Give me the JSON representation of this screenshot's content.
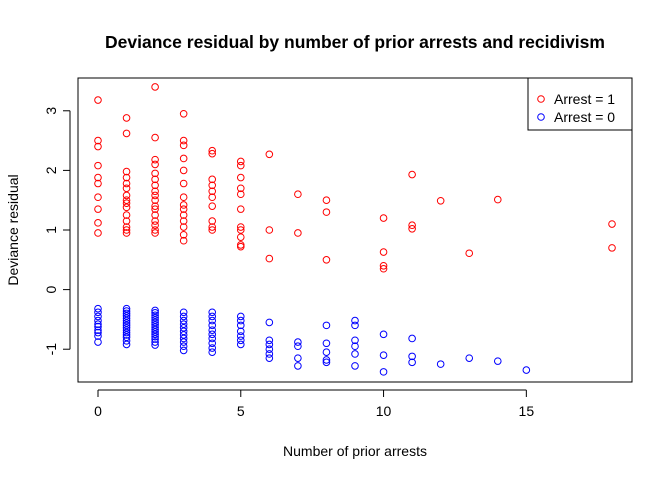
{
  "chart_data": {
    "type": "scatter",
    "title": "Deviance residual by number of prior arrests and recidivism",
    "xlabel": "Number of prior arrests",
    "ylabel": "Deviance residual",
    "xlim": [
      -0.7,
      18.7
    ],
    "ylim": [
      -1.55,
      3.55
    ],
    "xticks": [
      0,
      5,
      10,
      15
    ],
    "yticks": [
      -1,
      0,
      1,
      2,
      3
    ],
    "grid": false,
    "legend_position": "top-right",
    "series": [
      {
        "name": "Arrest = 1",
        "color": "#ff0000",
        "points": [
          [
            0,
            3.18
          ],
          [
            0,
            2.5
          ],
          [
            0,
            2.4
          ],
          [
            0,
            2.08
          ],
          [
            0,
            1.88
          ],
          [
            0,
            1.78
          ],
          [
            0,
            1.55
          ],
          [
            0,
            1.35
          ],
          [
            0,
            1.12
          ],
          [
            0,
            0.95
          ],
          [
            1,
            2.88
          ],
          [
            1,
            2.62
          ],
          [
            1,
            1.98
          ],
          [
            1,
            1.88
          ],
          [
            1,
            1.78
          ],
          [
            1,
            1.7
          ],
          [
            1,
            1.58
          ],
          [
            1,
            1.5
          ],
          [
            1,
            1.45
          ],
          [
            1,
            1.38
          ],
          [
            1,
            1.25
          ],
          [
            1,
            1.15
          ],
          [
            1,
            1.05
          ],
          [
            1,
            1.0
          ],
          [
            1,
            0.95
          ],
          [
            2,
            3.4
          ],
          [
            2,
            2.55
          ],
          [
            2,
            2.18
          ],
          [
            2,
            2.1
          ],
          [
            2,
            1.95
          ],
          [
            2,
            1.85
          ],
          [
            2,
            1.75
          ],
          [
            2,
            1.65
          ],
          [
            2,
            1.58
          ],
          [
            2,
            1.5
          ],
          [
            2,
            1.4
          ],
          [
            2,
            1.35
          ],
          [
            2,
            1.25
          ],
          [
            2,
            1.15
          ],
          [
            2,
            1.08
          ],
          [
            2,
            1.0
          ],
          [
            2,
            0.95
          ],
          [
            3,
            2.95
          ],
          [
            3,
            2.5
          ],
          [
            3,
            2.42
          ],
          [
            3,
            2.2
          ],
          [
            3,
            2.0
          ],
          [
            3,
            1.78
          ],
          [
            3,
            1.55
          ],
          [
            3,
            1.42
          ],
          [
            3,
            1.35
          ],
          [
            3,
            1.25
          ],
          [
            3,
            1.15
          ],
          [
            3,
            1.05
          ],
          [
            3,
            0.92
          ],
          [
            3,
            0.82
          ],
          [
            4,
            2.33
          ],
          [
            4,
            2.28
          ],
          [
            4,
            1.85
          ],
          [
            4,
            1.75
          ],
          [
            4,
            1.65
          ],
          [
            4,
            1.55
          ],
          [
            4,
            1.4
          ],
          [
            4,
            1.15
          ],
          [
            4,
            1.05
          ],
          [
            4,
            1.0
          ],
          [
            5,
            2.15
          ],
          [
            5,
            2.08
          ],
          [
            5,
            1.88
          ],
          [
            5,
            1.7
          ],
          [
            5,
            1.6
          ],
          [
            5,
            1.35
          ],
          [
            5,
            1.05
          ],
          [
            5,
            1.0
          ],
          [
            5,
            0.88
          ],
          [
            5,
            0.75
          ],
          [
            5,
            0.72
          ],
          [
            6,
            2.27
          ],
          [
            6,
            1.0
          ],
          [
            6,
            0.52
          ],
          [
            7,
            1.6
          ],
          [
            7,
            0.95
          ],
          [
            8,
            1.5
          ],
          [
            8,
            1.3
          ],
          [
            8,
            0.5
          ],
          [
            10,
            1.2
          ],
          [
            10,
            0.63
          ],
          [
            10,
            0.4
          ],
          [
            10,
            0.35
          ],
          [
            11,
            1.93
          ],
          [
            11,
            1.08
          ],
          [
            11,
            1.02
          ],
          [
            12,
            1.49
          ],
          [
            13,
            0.61
          ],
          [
            14,
            1.51
          ],
          [
            18,
            1.1
          ],
          [
            18,
            0.7
          ]
        ]
      },
      {
        "name": "Arrest = 0",
        "color": "#0000ff",
        "points": [
          [
            0,
            -0.32
          ],
          [
            0,
            -0.38
          ],
          [
            0,
            -0.45
          ],
          [
            0,
            -0.52
          ],
          [
            0,
            -0.58
          ],
          [
            0,
            -0.62
          ],
          [
            0,
            -0.68
          ],
          [
            0,
            -0.72
          ],
          [
            0,
            -0.78
          ],
          [
            0,
            -0.88
          ],
          [
            1,
            -0.32
          ],
          [
            1,
            -0.36
          ],
          [
            1,
            -0.4
          ],
          [
            1,
            -0.44
          ],
          [
            1,
            -0.48
          ],
          [
            1,
            -0.52
          ],
          [
            1,
            -0.56
          ],
          [
            1,
            -0.6
          ],
          [
            1,
            -0.64
          ],
          [
            1,
            -0.68
          ],
          [
            1,
            -0.72
          ],
          [
            1,
            -0.76
          ],
          [
            1,
            -0.8
          ],
          [
            1,
            -0.86
          ],
          [
            1,
            -0.92
          ],
          [
            2,
            -0.35
          ],
          [
            2,
            -0.39
          ],
          [
            2,
            -0.43
          ],
          [
            2,
            -0.47
          ],
          [
            2,
            -0.51
          ],
          [
            2,
            -0.55
          ],
          [
            2,
            -0.59
          ],
          [
            2,
            -0.63
          ],
          [
            2,
            -0.67
          ],
          [
            2,
            -0.71
          ],
          [
            2,
            -0.75
          ],
          [
            2,
            -0.79
          ],
          [
            2,
            -0.83
          ],
          [
            2,
            -0.88
          ],
          [
            2,
            -0.93
          ],
          [
            3,
            -0.38
          ],
          [
            3,
            -0.45
          ],
          [
            3,
            -0.52
          ],
          [
            3,
            -0.58
          ],
          [
            3,
            -0.64
          ],
          [
            3,
            -0.7
          ],
          [
            3,
            -0.76
          ],
          [
            3,
            -0.82
          ],
          [
            3,
            -0.88
          ],
          [
            3,
            -0.95
          ],
          [
            3,
            -1.02
          ],
          [
            4,
            -0.38
          ],
          [
            4,
            -0.45
          ],
          [
            4,
            -0.52
          ],
          [
            4,
            -0.6
          ],
          [
            4,
            -0.68
          ],
          [
            4,
            -0.75
          ],
          [
            4,
            -0.82
          ],
          [
            4,
            -0.9
          ],
          [
            4,
            -0.98
          ],
          [
            4,
            -1.05
          ],
          [
            5,
            -0.45
          ],
          [
            5,
            -0.52
          ],
          [
            5,
            -0.6
          ],
          [
            5,
            -0.7
          ],
          [
            5,
            -0.78
          ],
          [
            5,
            -0.85
          ],
          [
            5,
            -0.92
          ],
          [
            6,
            -0.55
          ],
          [
            6,
            -0.85
          ],
          [
            6,
            -0.92
          ],
          [
            6,
            -1.0
          ],
          [
            6,
            -1.08
          ],
          [
            6,
            -1.15
          ],
          [
            7,
            -0.88
          ],
          [
            7,
            -0.95
          ],
          [
            7,
            -1.15
          ],
          [
            7,
            -1.28
          ],
          [
            8,
            -0.6
          ],
          [
            8,
            -0.9
          ],
          [
            8,
            -1.05
          ],
          [
            8,
            -1.18
          ],
          [
            8,
            -1.22
          ],
          [
            9,
            -0.52
          ],
          [
            9,
            -0.6
          ],
          [
            9,
            -0.85
          ],
          [
            9,
            -0.95
          ],
          [
            9,
            -1.08
          ],
          [
            9,
            -1.28
          ],
          [
            10,
            -0.75
          ],
          [
            10,
            -1.1
          ],
          [
            10,
            -1.38
          ],
          [
            11,
            -0.82
          ],
          [
            11,
            -1.12
          ],
          [
            11,
            -1.22
          ],
          [
            12,
            -1.25
          ],
          [
            13,
            -1.15
          ],
          [
            14,
            -1.2
          ],
          [
            15,
            -1.35
          ]
        ]
      }
    ]
  }
}
